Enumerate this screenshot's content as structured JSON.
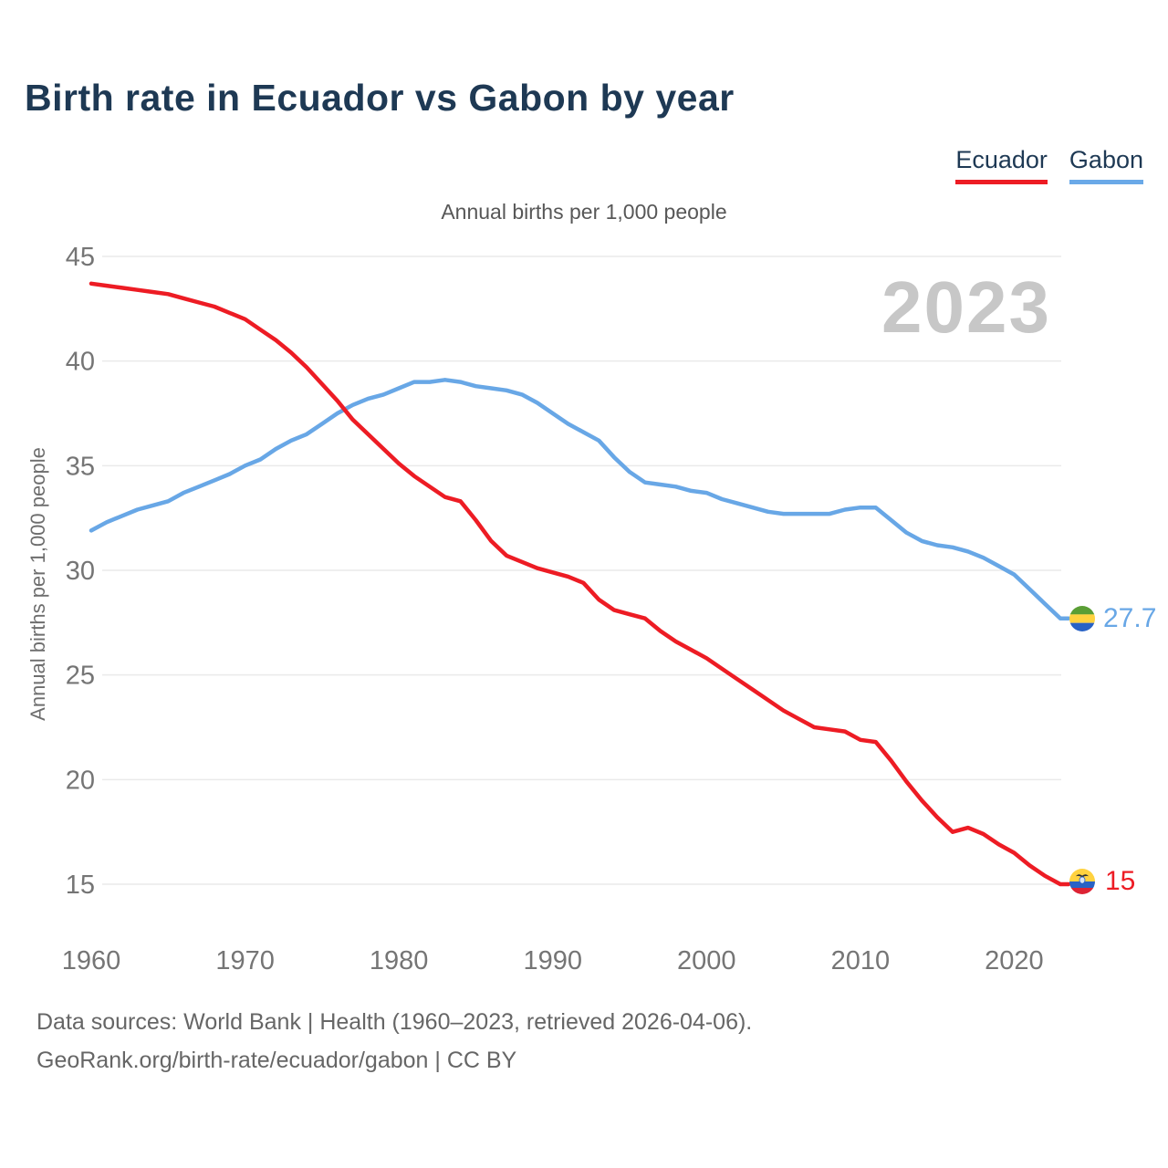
{
  "page": {
    "title": "Birth rate in Ecuador vs Gabon by year",
    "subtitle": "Annual births per 1,000 people",
    "watermark_year": "2023",
    "y_axis_label": "Annual births per 1,000 people",
    "footer": {
      "line1": "Data sources: World Bank | Health (1960–2023, retrieved 2026-04-06).",
      "line2": "GeoRank.org/birth-rate/ecuador/gabon | CC BY"
    }
  },
  "legend": [
    {
      "label": "Ecuador",
      "color": "#ed1c24"
    },
    {
      "label": "Gabon",
      "color": "#6aa9e8"
    }
  ],
  "end_labels": {
    "gabon": {
      "value": "27.7",
      "icon": "gabon-flag-icon"
    },
    "ecuador": {
      "value": "15",
      "icon": "ecuador-flag-icon"
    }
  },
  "colors": {
    "title": "#1e3954",
    "grid": "#eaeaea",
    "tick_text": "#757575",
    "watermark": "#c7c7c7"
  },
  "flags": {
    "gabon": [
      "#5a9e35",
      "#ffd23f",
      "#2862c5"
    ],
    "ecuador": [
      "#ffd23f",
      "#2862c5",
      "#dd2334"
    ]
  },
  "chart_data": {
    "type": "line",
    "title": "Annual births per 1,000 people",
    "xlabel": "",
    "ylabel": "Annual births per 1,000 people",
    "ylim": [
      15,
      45
    ],
    "yticks": [
      15,
      20,
      25,
      30,
      35,
      40,
      45
    ],
    "xticks": [
      1960,
      1970,
      1980,
      1990,
      2000,
      2010,
      2020
    ],
    "grid": "horizontal",
    "legend_position": "top-right",
    "x": [
      1960,
      1961,
      1962,
      1963,
      1964,
      1965,
      1966,
      1967,
      1968,
      1969,
      1970,
      1971,
      1972,
      1973,
      1974,
      1975,
      1976,
      1977,
      1978,
      1979,
      1980,
      1981,
      1982,
      1983,
      1984,
      1985,
      1986,
      1987,
      1988,
      1989,
      1990,
      1991,
      1992,
      1993,
      1994,
      1995,
      1996,
      1997,
      1998,
      1999,
      2000,
      2001,
      2002,
      2003,
      2004,
      2005,
      2006,
      2007,
      2008,
      2009,
      2010,
      2011,
      2012,
      2013,
      2014,
      2015,
      2016,
      2017,
      2018,
      2019,
      2020,
      2021,
      2022,
      2023
    ],
    "series": [
      {
        "name": "Ecuador",
        "color": "#ed1c24",
        "end_label": 15,
        "values": [
          43.7,
          43.6,
          43.5,
          43.4,
          43.3,
          43.2,
          43.0,
          42.8,
          42.6,
          42.3,
          42.0,
          41.5,
          41.0,
          40.4,
          39.7,
          38.9,
          38.1,
          37.2,
          36.5,
          35.8,
          35.1,
          34.5,
          34.0,
          33.5,
          33.3,
          32.4,
          31.4,
          30.7,
          30.4,
          30.1,
          29.9,
          29.7,
          29.4,
          28.6,
          28.1,
          27.9,
          27.7,
          27.1,
          26.6,
          26.2,
          25.8,
          25.3,
          24.8,
          24.3,
          23.8,
          23.3,
          22.9,
          22.5,
          22.4,
          22.3,
          21.9,
          21.8,
          20.9,
          19.9,
          19.0,
          18.2,
          17.5,
          17.7,
          17.4,
          16.9,
          16.5,
          15.9,
          15.4,
          15.0
        ]
      },
      {
        "name": "Gabon",
        "color": "#68a7e6",
        "end_label": 27.7,
        "values": [
          31.9,
          32.3,
          32.6,
          32.9,
          33.1,
          33.3,
          33.7,
          34.0,
          34.3,
          34.6,
          35.0,
          35.3,
          35.8,
          36.2,
          36.5,
          37.0,
          37.5,
          37.9,
          38.2,
          38.4,
          38.7,
          39.0,
          39.0,
          39.1,
          39.0,
          38.8,
          38.7,
          38.6,
          38.4,
          38.0,
          37.5,
          37.0,
          36.6,
          36.2,
          35.4,
          34.7,
          34.2,
          34.1,
          34.0,
          33.8,
          33.7,
          33.4,
          33.2,
          33.0,
          32.8,
          32.7,
          32.7,
          32.7,
          32.7,
          32.9,
          33.0,
          33.0,
          32.4,
          31.8,
          31.4,
          31.2,
          31.1,
          30.9,
          30.6,
          30.2,
          29.8,
          29.1,
          28.4,
          27.7
        ]
      }
    ]
  }
}
